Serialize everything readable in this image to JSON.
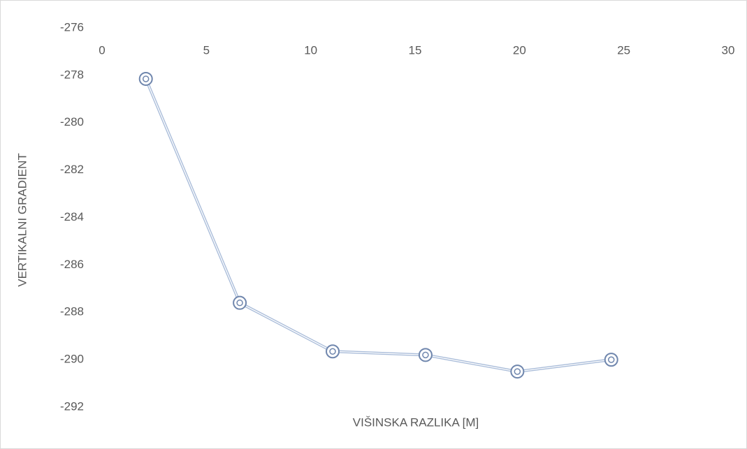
{
  "chart_data": {
    "type": "line",
    "x_label": "VIŠINSKA RAZLIKA [M]",
    "y_label": "VERTIKALNI GRADIENT",
    "series": [
      {
        "color": "#6f86ad",
        "x": [
          2.1,
          6.6,
          11.05,
          15.5,
          19.9,
          24.4
        ],
        "values": [
          -278.15,
          -287.6,
          -289.65,
          -289.8,
          -290.5,
          -290.0
        ]
      }
    ],
    "xlim": [
      0,
      30
    ],
    "xticks": [
      0,
      5,
      10,
      15,
      20,
      25,
      30
    ],
    "ylim": [
      -292,
      -276
    ],
    "yticks": [
      -292,
      -290,
      -288,
      -286,
      -284,
      -282,
      -280,
      -278,
      -276
    ],
    "grid": false
  }
}
